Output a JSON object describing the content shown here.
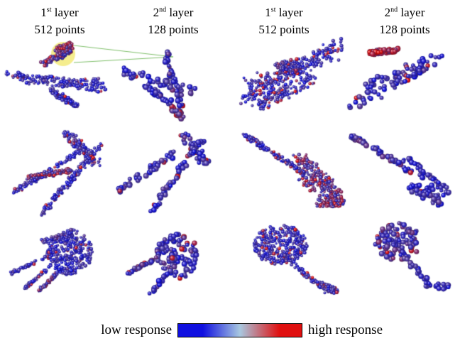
{
  "headers": [
    {
      "ordinal_num": "1",
      "ordinal_sup": "st",
      "layer": " layer",
      "points": "512 points"
    },
    {
      "ordinal_num": "2",
      "ordinal_sup": "nd",
      "layer": " layer",
      "points": "128 points"
    },
    {
      "ordinal_num": "1",
      "ordinal_sup": "st",
      "layer": " layer",
      "points": "512 points"
    },
    {
      "ordinal_num": "2",
      "ordinal_sup": "nd",
      "layer": " layer",
      "points": "128 points"
    }
  ],
  "legend": {
    "low_label": "low response",
    "high_label": "high response",
    "colors": {
      "low": "#1010e0",
      "mid": "#a8c8e0",
      "high": "#e01010"
    }
  },
  "colors": {
    "highlight_circle": "#f3ea7a",
    "link_line": "#7fbf6a"
  }
}
